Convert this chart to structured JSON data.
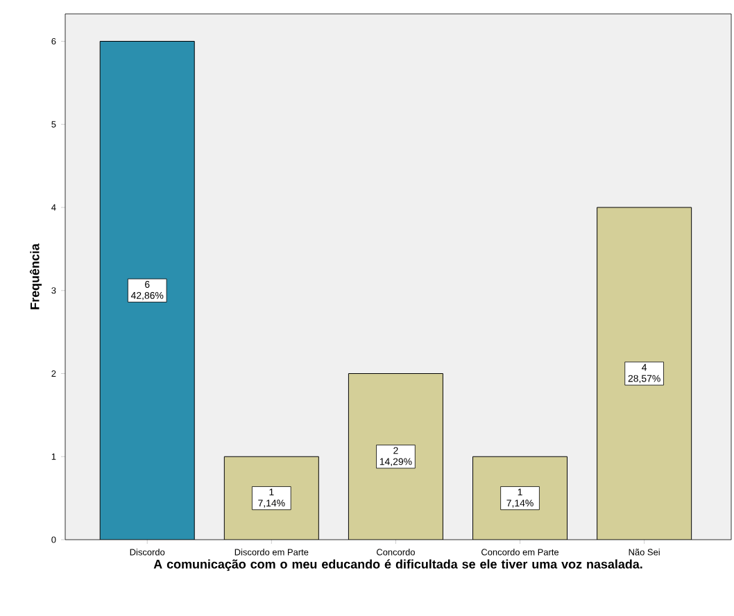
{
  "chart_data": {
    "type": "bar",
    "xlabel": "A comunicação com o meu educando é dificultada se ele tiver uma voz nasalada.",
    "ylabel": "Frequência",
    "categories": [
      "Discordo",
      "Discordo em Parte",
      "Concordo",
      "Concordo em Parte",
      "Não Sei"
    ],
    "values": [
      6,
      1,
      2,
      1,
      4
    ],
    "colors": [
      "#2b8fae",
      "#d4cf98",
      "#d4cf98",
      "#d4cf98",
      "#d4cf98"
    ],
    "value_labels": [
      "6 42,86%",
      "1 7,14%",
      "2 14,29%",
      "1 7,14%",
      "4 28,57%"
    ],
    "ylim": [
      0,
      6.33
    ],
    "yticks": [
      0,
      1,
      2,
      3,
      4,
      5,
      6
    ],
    "grid": false
  }
}
